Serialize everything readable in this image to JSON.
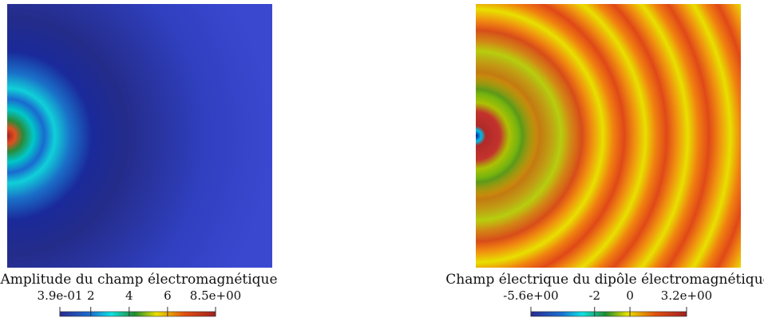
{
  "panels": [
    {
      "title": "Amplitude du champ électromagnétique",
      "colorbar": {
        "range": [
          0.39,
          8.5
        ],
        "ticks": [
          {
            "value": 0.39,
            "label": "3.9e-01"
          },
          2,
          4,
          6,
          {
            "value": 8.5,
            "label": "8.5e+00"
          }
        ]
      }
    },
    {
      "title": "Champ électrique du dipôle électromagnétique",
      "colorbar": {
        "range": [
          -5.6,
          3.2
        ],
        "ticks": [
          {
            "value": -5.6,
            "label": "-5.6e+00"
          },
          -2,
          0,
          {
            "value": 3.2,
            "label": "3.2e+00"
          }
        ]
      }
    }
  ]
}
